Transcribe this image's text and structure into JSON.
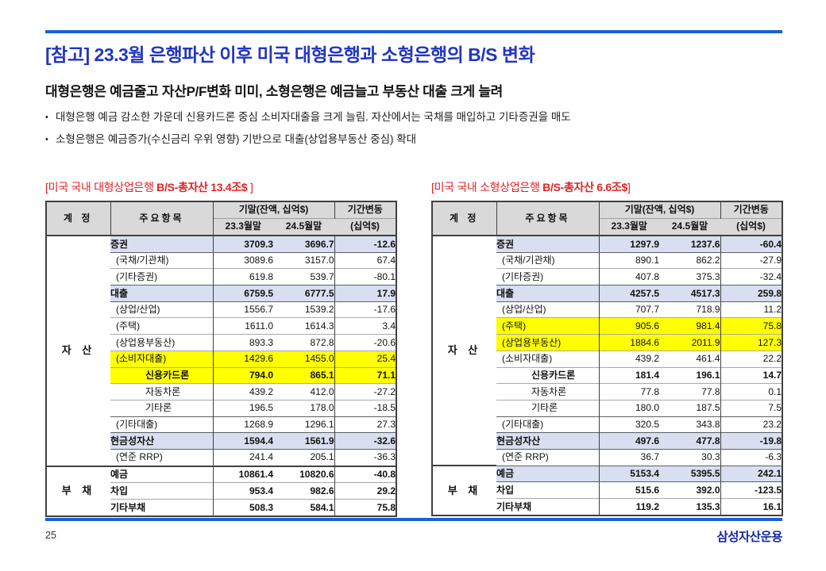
{
  "page": {
    "title": "[참고] 23.3월 은행파산 이후 미국 대형은행과 소형은행의 B/S 변화",
    "subtitle": "대형은행은 예금줄고 자산P/F변화 미미, 소형은행은 예금늘고 부동산 대출 크게 늘려",
    "bullet_marker": "•",
    "bullets": [
      "대형은행 예금 감소한 가운데 신용카드론 중심 소비자대출을 크게 늘림. 자산에서는 국채를 매입하고 기타증권을 매도",
      "소형은행은 예금증가(수신금리 우위 영향) 기반으로 대출(상업용부동산 중심) 확대"
    ],
    "page_number": "25",
    "logo": "삼성자산운용"
  },
  "colors": {
    "accent_rule_blue": "#1961d6",
    "title_blue": "#2336c0",
    "caption_red": "#e32226",
    "header_gray": "#d9d9d9",
    "row_highlight_blue": "#d9dff0",
    "row_highlight_yellow": "#ffff00",
    "logo_blue": "#1428a0"
  },
  "table_header": {
    "account": "계 정",
    "item": "주요항목",
    "period_group": "기말(잔액, 십억$)",
    "col_a": "23.3월말",
    "col_b": "24.5월말",
    "change_line1": "기간변동",
    "change_line2": "(십억$)"
  },
  "tables": [
    {
      "caption_prefix": "[미국 국내 대형상업은행 ",
      "caption_bold": "B/S-총자산 13.4조$",
      "caption_suffix": " ]",
      "sections": [
        {
          "account": "자 산",
          "rows": [
            {
              "label": "증권",
              "indent": 0,
              "bold": true,
              "bg": "blue",
              "v1": "3709.3",
              "v2": "3696.7",
              "chg": "-12.6"
            },
            {
              "label": "(국채/기관채)",
              "indent": 1,
              "bold": false,
              "bg": "",
              "v1": "3089.6",
              "v2": "3157.0",
              "chg": "67.4"
            },
            {
              "label": "(기타증권)",
              "indent": 1,
              "bold": false,
              "bg": "",
              "v1": "619.8",
              "v2": "539.7",
              "chg": "-80.1"
            },
            {
              "label": "대출",
              "indent": 0,
              "bold": true,
              "bg": "blue",
              "v1": "6759.5",
              "v2": "6777.5",
              "chg": "17.9"
            },
            {
              "label": "(상업/산업)",
              "indent": 1,
              "bold": false,
              "bg": "",
              "v1": "1556.7",
              "v2": "1539.2",
              "chg": "-17.6"
            },
            {
              "label": "(주택)",
              "indent": 1,
              "bold": false,
              "bg": "",
              "v1": "1611.0",
              "v2": "1614.3",
              "chg": "3.4"
            },
            {
              "label": "(상업용부동산)",
              "indent": 1,
              "bold": false,
              "bg": "",
              "v1": "893.3",
              "v2": "872.8",
              "chg": "-20.6"
            },
            {
              "label": "(소비자대출)",
              "indent": 1,
              "bold": false,
              "bg": "yellow",
              "v1": "1429.6",
              "v2": "1455.0",
              "chg": "25.4"
            },
            {
              "label": "신용카드론",
              "indent": 2,
              "bold": true,
              "bg": "yellow",
              "v1": "794.0",
              "v2": "865.1",
              "chg": "71.1"
            },
            {
              "label": "자동차론",
              "indent": 2,
              "bold": false,
              "bg": "",
              "v1": "439.2",
              "v2": "412.0",
              "chg": "-27.2"
            },
            {
              "label": "기타론",
              "indent": 2,
              "bold": false,
              "bg": "",
              "v1": "196.5",
              "v2": "178.0",
              "chg": "-18.5"
            },
            {
              "label": "(기타대출)",
              "indent": 1,
              "bold": false,
              "bg": "",
              "v1": "1268.9",
              "v2": "1296.1",
              "chg": "27.3"
            },
            {
              "label": "현금성자산",
              "indent": 0,
              "bold": true,
              "bg": "blue",
              "v1": "1594.4",
              "v2": "1561.9",
              "chg": "-32.6"
            },
            {
              "label": "(연준 RRP)",
              "indent": 1,
              "bold": false,
              "bg": "",
              "v1": "241.4",
              "v2": "205.1",
              "chg": "-36.3"
            }
          ]
        },
        {
          "account": "부 채",
          "rows": [
            {
              "label": "예금",
              "indent": 0,
              "bold": true,
              "bg": "",
              "v1": "10861.4",
              "v2": "10820.6",
              "chg": "-40.8"
            },
            {
              "label": "차입",
              "indent": 0,
              "bold": true,
              "bg": "",
              "v1": "953.4",
              "v2": "982.6",
              "chg": "29.2"
            },
            {
              "label": "기타부채",
              "indent": 0,
              "bold": true,
              "bg": "",
              "v1": "508.3",
              "v2": "584.1",
              "chg": "75.8"
            }
          ]
        }
      ]
    },
    {
      "caption_prefix": "[미국 국내 소형상업은행 ",
      "caption_bold": "B/S-총자산 6.6조$",
      "caption_suffix": "]",
      "sections": [
        {
          "account": "자 산",
          "rows": [
            {
              "label": "증권",
              "indent": 0,
              "bold": true,
              "bg": "blue",
              "v1": "1297.9",
              "v2": "1237.6",
              "chg": "-60.4"
            },
            {
              "label": "(국채/기관채)",
              "indent": 1,
              "bold": false,
              "bg": "",
              "v1": "890.1",
              "v2": "862.2",
              "chg": "-27.9"
            },
            {
              "label": "(기타증권)",
              "indent": 1,
              "bold": false,
              "bg": "",
              "v1": "407.8",
              "v2": "375.3",
              "chg": "-32.4"
            },
            {
              "label": "대출",
              "indent": 0,
              "bold": true,
              "bg": "blue",
              "v1": "4257.5",
              "v2": "4517.3",
              "chg": "259.8"
            },
            {
              "label": "(상업/산업)",
              "indent": 1,
              "bold": false,
              "bg": "",
              "v1": "707.7",
              "v2": "718.9",
              "chg": "11.2"
            },
            {
              "label": "(주택)",
              "indent": 1,
              "bold": false,
              "bg": "yellow",
              "v1": "905.6",
              "v2": "981.4",
              "chg": "75.8"
            },
            {
              "label": "(상업용부동산)",
              "indent": 1,
              "bold": false,
              "bg": "yellow",
              "v1": "1884.6",
              "v2": "2011.9",
              "chg": "127.3"
            },
            {
              "label": "(소비자대출)",
              "indent": 1,
              "bold": false,
              "bg": "",
              "v1": "439.2",
              "v2": "461.4",
              "chg": "22.2"
            },
            {
              "label": "신용카드론",
              "indent": 2,
              "bold": true,
              "bg": "",
              "v1": "181.4",
              "v2": "196.1",
              "chg": "14.7"
            },
            {
              "label": "자동차론",
              "indent": 2,
              "bold": false,
              "bg": "",
              "v1": "77.8",
              "v2": "77.8",
              "chg": "0.1"
            },
            {
              "label": "기타론",
              "indent": 2,
              "bold": false,
              "bg": "",
              "v1": "180.0",
              "v2": "187.5",
              "chg": "7.5"
            },
            {
              "label": "(기타대출)",
              "indent": 1,
              "bold": false,
              "bg": "",
              "v1": "320.5",
              "v2": "343.8",
              "chg": "23.2"
            },
            {
              "label": "현금성자산",
              "indent": 0,
              "bold": true,
              "bg": "blue",
              "v1": "497.6",
              "v2": "477.8",
              "chg": "-19.8"
            },
            {
              "label": "(연준 RRP)",
              "indent": 1,
              "bold": false,
              "bg": "",
              "v1": "36.7",
              "v2": "30.3",
              "chg": "-6.3"
            }
          ]
        },
        {
          "account": "부 채",
          "rows": [
            {
              "label": "예금",
              "indent": 0,
              "bold": true,
              "bg": "blue",
              "v1": "5153.4",
              "v2": "5395.5",
              "chg": "242.1"
            },
            {
              "label": "차입",
              "indent": 0,
              "bold": true,
              "bg": "",
              "v1": "515.6",
              "v2": "392.0",
              "chg": "-123.5"
            },
            {
              "label": "기타부채",
              "indent": 0,
              "bold": true,
              "bg": "",
              "v1": "119.2",
              "v2": "135.3",
              "chg": "16.1"
            }
          ]
        }
      ]
    }
  ]
}
